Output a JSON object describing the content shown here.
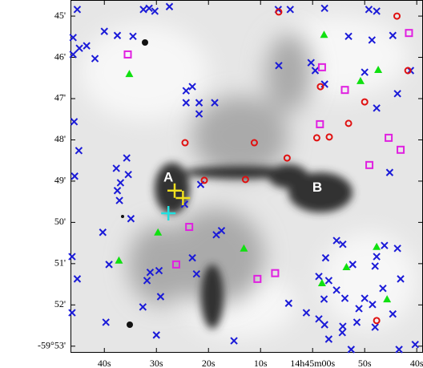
{
  "chart_data": {
    "type": "scatter",
    "xlim": [
      46.5,
      -21.2
    ],
    "ylim": [
      53.16,
      44.61
    ],
    "xticks": [
      {
        "value": 40,
        "label": "40s"
      },
      {
        "value": 30,
        "label": "30s"
      },
      {
        "value": 20,
        "label": "20s"
      },
      {
        "value": 10,
        "label": "10s"
      },
      {
        "value": 0,
        "label": "14h45m00s"
      },
      {
        "value": -10,
        "label": "50s"
      },
      {
        "value": -20,
        "label": "40s"
      }
    ],
    "yticks": [
      {
        "value": 45,
        "label": "45'"
      },
      {
        "value": 46,
        "label": "46'"
      },
      {
        "value": 47,
        "label": "47'"
      },
      {
        "value": 48,
        "label": "48'"
      },
      {
        "value": 49,
        "label": "49'"
      },
      {
        "value": 50,
        "label": "50'"
      },
      {
        "value": 51,
        "label": "51'"
      },
      {
        "value": 52,
        "label": "52'"
      },
      {
        "value": 53,
        "label": "-59°53'"
      }
    ],
    "series": [
      {
        "marker": "x",
        "color": "#1a1ad8",
        "x": [
          45.2,
          46.0,
          44.8,
          46.0,
          43.4,
          41.8,
          40.0,
          37.5,
          34.5,
          32.5,
          31.4,
          30.3,
          27.5,
          45.8,
          44.9,
          45.7,
          37.7,
          36.9,
          35.7,
          35.4,
          37.5,
          37.1,
          34.9,
          40.3,
          39.1,
          46.2,
          45.2,
          46.2,
          39.7,
          32.6,
          31.8,
          31.2,
          29.5,
          29.2,
          30.0,
          24.3,
          23.1,
          24.3,
          21.8,
          18.8,
          21.8,
          22.3,
          23.1,
          18.5,
          17.5,
          21.5,
          24.6,
          15.1,
          6.6,
          4.3,
          -2.3,
          -10.8,
          -12.3,
          -6.9,
          -11.4,
          -15.4,
          6.5,
          0.3,
          -0.5,
          -2.3,
          -10.0,
          -18.8,
          -16.3,
          -12.3,
          -14.8,
          -4.6,
          -5.8,
          -2.5,
          -1.2,
          -3.1,
          -4.6,
          -7.7,
          -12.3,
          -13.8,
          -16.3,
          -12.0,
          -16.9,
          -13.5,
          -6.2,
          -10.0,
          -8.9,
          -11.5,
          -2.2,
          4.6,
          1.2,
          -1.2,
          -2.3,
          -5.8,
          -8.5,
          -15.4,
          -12.0,
          -3.1,
          -16.6,
          -19.7,
          -7.4,
          -5.7
        ],
        "y": [
          44.84,
          45.52,
          45.78,
          45.93,
          45.72,
          46.03,
          45.37,
          45.47,
          45.49,
          44.84,
          44.81,
          44.88,
          44.77,
          47.56,
          48.26,
          48.88,
          48.69,
          49.04,
          48.44,
          48.84,
          49.23,
          49.47,
          49.91,
          50.24,
          51.02,
          50.83,
          51.37,
          52.19,
          52.42,
          52.05,
          51.41,
          51.21,
          51.17,
          51.8,
          52.73,
          46.81,
          46.71,
          47.1,
          47.1,
          47.1,
          47.37,
          51.25,
          50.86,
          50.3,
          50.2,
          49.08,
          49.56,
          52.87,
          44.84,
          44.84,
          44.81,
          44.84,
          44.88,
          45.49,
          45.58,
          45.47,
          46.2,
          46.13,
          46.32,
          46.65,
          46.36,
          46.32,
          46.88,
          47.23,
          48.79,
          50.44,
          50.53,
          50.86,
          51.31,
          51.41,
          51.64,
          51.02,
          50.83,
          50.56,
          50.63,
          51.06,
          51.37,
          51.6,
          51.84,
          51.84,
          52.09,
          51.99,
          51.86,
          51.96,
          52.19,
          52.34,
          52.48,
          52.52,
          52.42,
          52.22,
          52.54,
          52.83,
          53.08,
          52.96,
          53.08,
          52.67
        ]
      },
      {
        "marker": "circle",
        "color": "#e01010",
        "x": [
          6.5,
          -16.2,
          -18.3,
          -1.5,
          -10.0,
          -6.9,
          -0.8,
          -3.2,
          4.9,
          11.2,
          12.9,
          20.8,
          24.5,
          -12.3
        ],
        "y": [
          44.9,
          45.0,
          46.32,
          46.71,
          47.08,
          47.6,
          47.95,
          47.93,
          48.44,
          48.07,
          48.96,
          48.98,
          48.07,
          52.38
        ]
      },
      {
        "marker": "square",
        "color": "#e020e0",
        "x": [
          35.5,
          -18.5,
          -1.8,
          -1.4,
          -14.6,
          -16.9,
          -10.9,
          23.7,
          26.2,
          10.6,
          7.2,
          -6.2
        ],
        "y": [
          45.93,
          45.41,
          46.24,
          47.62,
          47.95,
          48.24,
          48.61,
          50.11,
          51.02,
          51.37,
          51.23,
          46.79
        ]
      },
      {
        "marker": "triangle",
        "color": "#10e010",
        "x": [
          -2.2,
          -12.6,
          35.2,
          -9.2,
          29.7,
          37.2,
          13.2,
          -6.5,
          -12.3,
          -1.8,
          -14.3
        ],
        "y": [
          45.45,
          46.3,
          46.4,
          46.57,
          50.24,
          50.92,
          50.63,
          51.08,
          50.59,
          51.47,
          51.86
        ]
      },
      {
        "marker": "plus",
        "color": "#f0e020",
        "x": [
          26.5,
          24.9
        ],
        "y": [
          49.23,
          49.41
        ]
      },
      {
        "marker": "plus",
        "color": "#20e0e0",
        "x": [
          27.7
        ],
        "y": [
          49.78
        ]
      }
    ],
    "annotations": [
      {
        "text": "A",
        "x": 27.7,
        "y": 48.92
      },
      {
        "text": "B",
        "x": -0.9,
        "y": 49.17
      }
    ]
  }
}
